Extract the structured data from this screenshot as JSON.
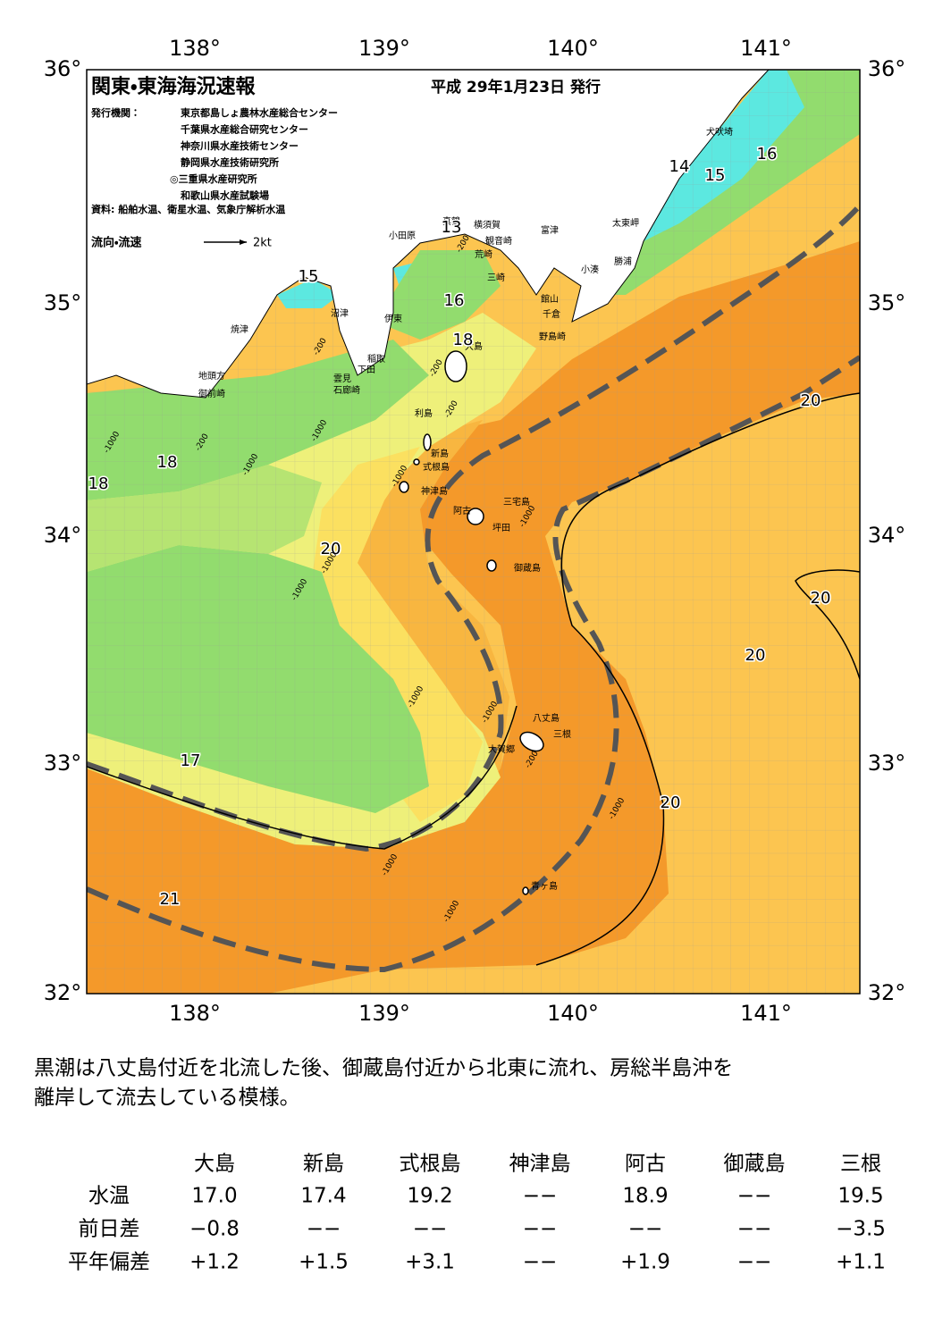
{
  "map": {
    "title": "関東・東海海況速報",
    "date": "平成 29年1月23日 発行",
    "issuers_label": "発行機関：",
    "issuers": [
      "東京都島しょ農林水産総合センター",
      "千葉県水産総合研究センター",
      "神奈川県水産技術センター",
      "静岡県水産技術研究所",
      "◎三重県水産研究所",
      "和歌山県水産試験場"
    ],
    "source": "資料: 船舶水温、衛星水温、気象庁解析水温",
    "flow_legend": "流向・流速",
    "flow_scale": "2kt",
    "lon_labels": [
      "138°",
      "139°",
      "140°",
      "141°"
    ],
    "lat_labels": [
      "36°",
      "35°",
      "34°",
      "33°",
      "32°"
    ],
    "places": [
      "犬吠埼",
      "太東岬",
      "勝浦",
      "小湊",
      "富津",
      "横須賀",
      "観音崎",
      "荒崎",
      "三崎",
      "館山",
      "千倉",
      "野島崎",
      "小田原",
      "真鶴",
      "沼津",
      "伊東",
      "稲取",
      "下田",
      "雲見",
      "石廊崎",
      "焼津",
      "地頭方",
      "御前崎",
      "大島",
      "利島",
      "新島",
      "式根島",
      "神津島",
      "三宅島",
      "阿古",
      "坪田",
      "御蔵島",
      "八丈島",
      "三根",
      "大賀郷",
      "青ヶ島"
    ],
    "isotherms": [
      "13",
      "14",
      "15",
      "16",
      "15",
      "16",
      "18",
      "18",
      "18",
      "20",
      "20",
      "20",
      "20",
      "20",
      "17",
      "21"
    ],
    "depths": [
      "-200",
      "-200",
      "-200",
      "-200",
      "-200",
      "-1000",
      "-1000",
      "-1000",
      "-1000",
      "-1000",
      "-1000",
      "-1000",
      "-1000",
      "-1000",
      "-200",
      "-1000",
      "-1000",
      "-1000"
    ]
  },
  "summary": [
    "黒潮は八丈島付近を北流した後、御蔵島付近から北東に流れ、房総半島沖を",
    "離岸して流去している模様。"
  ],
  "table": {
    "header": [
      "大島",
      "新島",
      "式根島",
      "神津島",
      "阿古",
      "御蔵島",
      "三根"
    ],
    "rows": [
      {
        "label": "水温",
        "cells": [
          "17.0",
          "17.4",
          "19.2",
          "−−",
          "18.9",
          "−−",
          "19.5"
        ]
      },
      {
        "label": "前日差",
        "cells": [
          "−0.8",
          "−−",
          "−−",
          "−−",
          "−−",
          "−−",
          "−3.5"
        ]
      },
      {
        "label": "平年偏差",
        "cells": [
          "+1.2",
          "+1.5",
          "+3.1",
          "−−",
          "+1.9",
          "−−",
          "+1.1"
        ]
      }
    ]
  }
}
